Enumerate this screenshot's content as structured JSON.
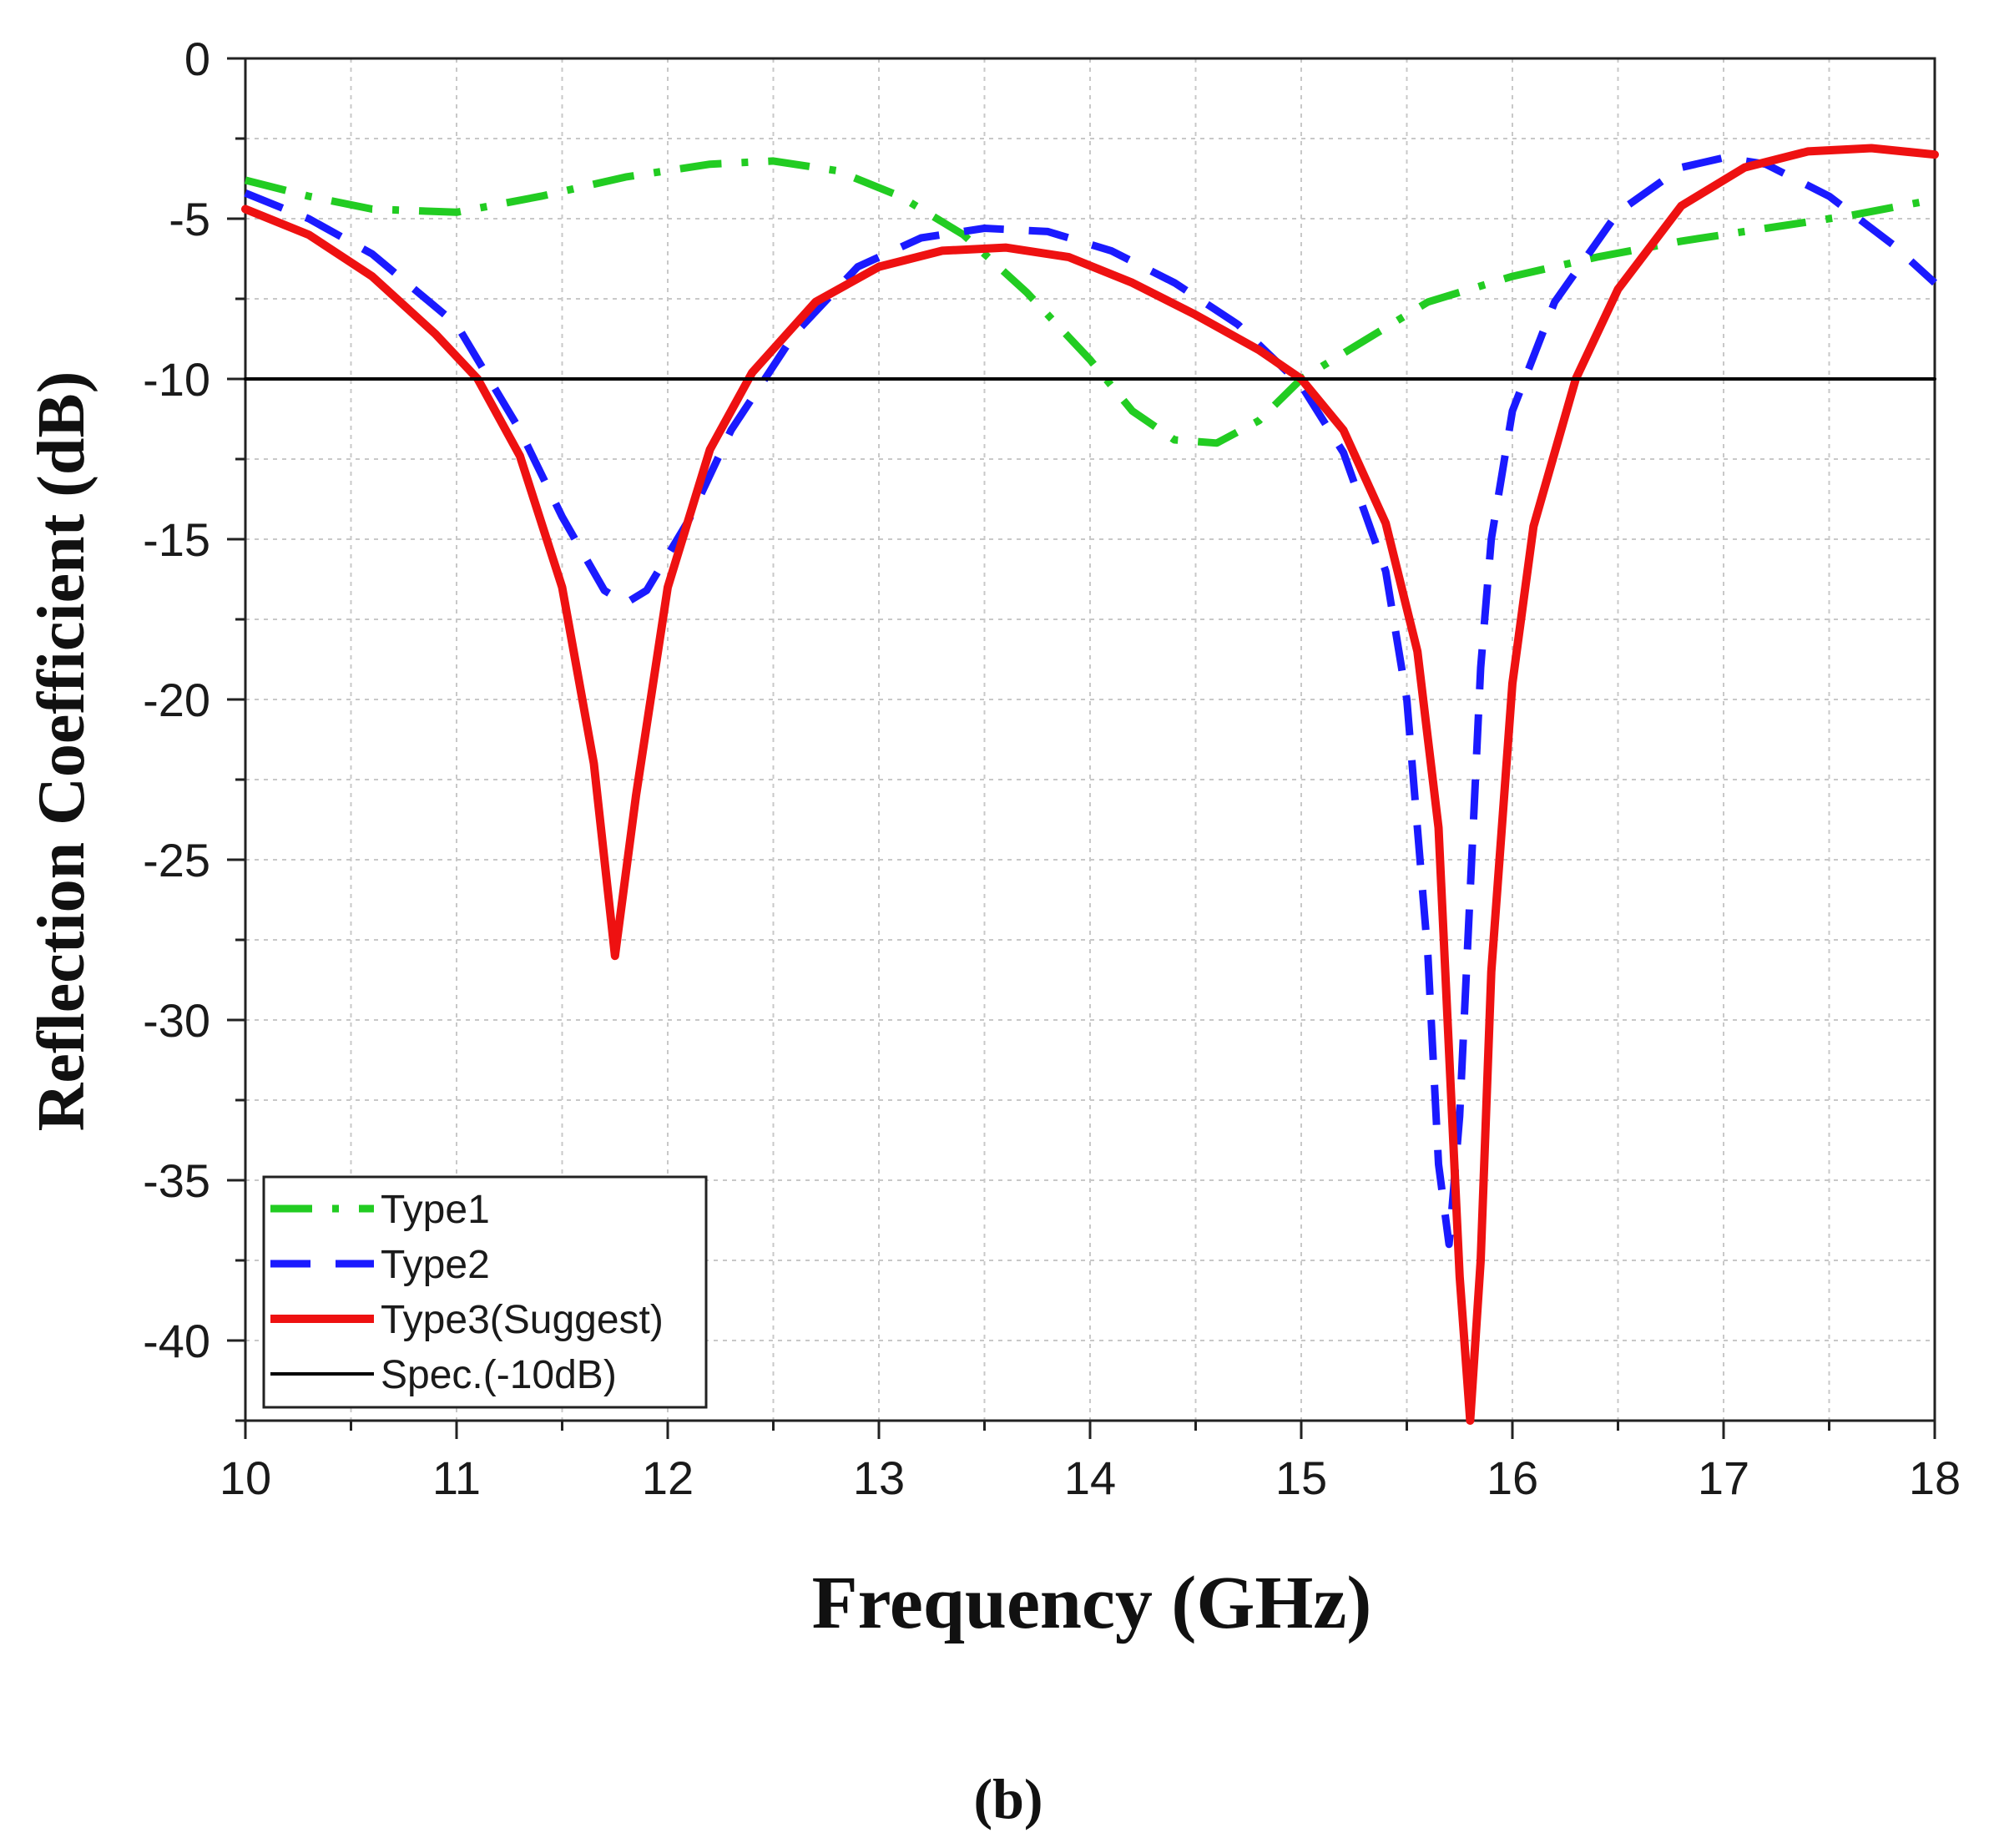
{
  "chart_data": {
    "type": "line",
    "xlabel": "Frequency (GHz)",
    "ylabel": "Reflection Coefficient (dB)",
    "panel_label": "(b)",
    "xlim": [
      10,
      18
    ],
    "ylim": [
      -42.5,
      0
    ],
    "x_ticks": [
      10,
      11,
      12,
      13,
      14,
      15,
      16,
      17,
      18
    ],
    "y_ticks": [
      0,
      -5,
      -10,
      -15,
      -20,
      -25,
      -30,
      -35,
      -40
    ],
    "grid": true,
    "legend_position": "bottom-left",
    "series": [
      {
        "name": "Type1",
        "color": "#22cc22",
        "style": "dash-dot",
        "x": [
          10.0,
          10.3,
          10.6,
          11.0,
          11.4,
          11.8,
          12.2,
          12.5,
          12.8,
          13.1,
          13.4,
          13.7,
          14.0,
          14.2,
          14.4,
          14.6,
          14.8,
          15.0,
          15.3,
          15.6,
          16.0,
          16.4,
          16.8,
          17.2,
          17.6,
          18.0
        ],
        "y": [
          -3.8,
          -4.3,
          -4.7,
          -4.8,
          -4.3,
          -3.7,
          -3.3,
          -3.2,
          -3.5,
          -4.3,
          -5.5,
          -7.3,
          -9.4,
          -11.0,
          -11.9,
          -12.0,
          -11.3,
          -10.0,
          -8.8,
          -7.6,
          -6.8,
          -6.2,
          -5.7,
          -5.3,
          -4.9,
          -4.4
        ]
      },
      {
        "name": "Type2",
        "color": "#1a1aff",
        "style": "dashed",
        "x": [
          10.0,
          10.3,
          10.6,
          11.0,
          11.3,
          11.5,
          11.7,
          11.8,
          11.9,
          12.1,
          12.3,
          12.6,
          12.9,
          13.2,
          13.5,
          13.8,
          14.1,
          14.4,
          14.7,
          15.0,
          15.2,
          15.4,
          15.5,
          15.6,
          15.65,
          15.7,
          15.75,
          15.8,
          15.85,
          15.9,
          16.0,
          16.2,
          16.5,
          16.8,
          17.0,
          17.2,
          17.5,
          17.8,
          18.0
        ],
        "y": [
          -4.2,
          -5.0,
          -6.1,
          -8.3,
          -11.6,
          -14.3,
          -16.6,
          -17.0,
          -16.6,
          -14.4,
          -11.6,
          -8.6,
          -6.5,
          -5.6,
          -5.3,
          -5.4,
          -6.0,
          -7.0,
          -8.3,
          -10.2,
          -12.3,
          -16.0,
          -20.0,
          -28.0,
          -34.5,
          -37.0,
          -33.0,
          -26.0,
          -19.0,
          -15.0,
          -11.0,
          -7.6,
          -4.8,
          -3.4,
          -3.1,
          -3.3,
          -4.3,
          -5.8,
          -7.0
        ]
      },
      {
        "name": "Type3(Suggest)",
        "color": "#ee1111",
        "style": "solid",
        "x": [
          10.0,
          10.3,
          10.6,
          10.9,
          11.1,
          11.3,
          11.5,
          11.65,
          11.75,
          11.85,
          12.0,
          12.2,
          12.4,
          12.7,
          13.0,
          13.3,
          13.6,
          13.9,
          14.2,
          14.5,
          14.8,
          15.0,
          15.2,
          15.4,
          15.55,
          15.65,
          15.7,
          15.75,
          15.8,
          15.85,
          15.9,
          16.0,
          16.1,
          16.3,
          16.5,
          16.8,
          17.1,
          17.4,
          17.7,
          18.0
        ],
        "y": [
          -4.7,
          -5.5,
          -6.8,
          -8.6,
          -10.0,
          -12.4,
          -16.5,
          -22.0,
          -28.0,
          -23.0,
          -16.5,
          -12.2,
          -9.8,
          -7.6,
          -6.5,
          -6.0,
          -5.9,
          -6.2,
          -7.0,
          -8.0,
          -9.1,
          -10.0,
          -11.6,
          -14.5,
          -18.5,
          -24.0,
          -31.0,
          -38.0,
          -42.5,
          -37.5,
          -28.5,
          -19.5,
          -14.6,
          -10.0,
          -7.2,
          -4.6,
          -3.4,
          -2.9,
          -2.8,
          -3.0
        ]
      },
      {
        "name": "Spec.(-10dB)",
        "color": "#000000",
        "style": "solid",
        "x": [
          10,
          18
        ],
        "y": [
          -10,
          -10
        ]
      }
    ]
  }
}
